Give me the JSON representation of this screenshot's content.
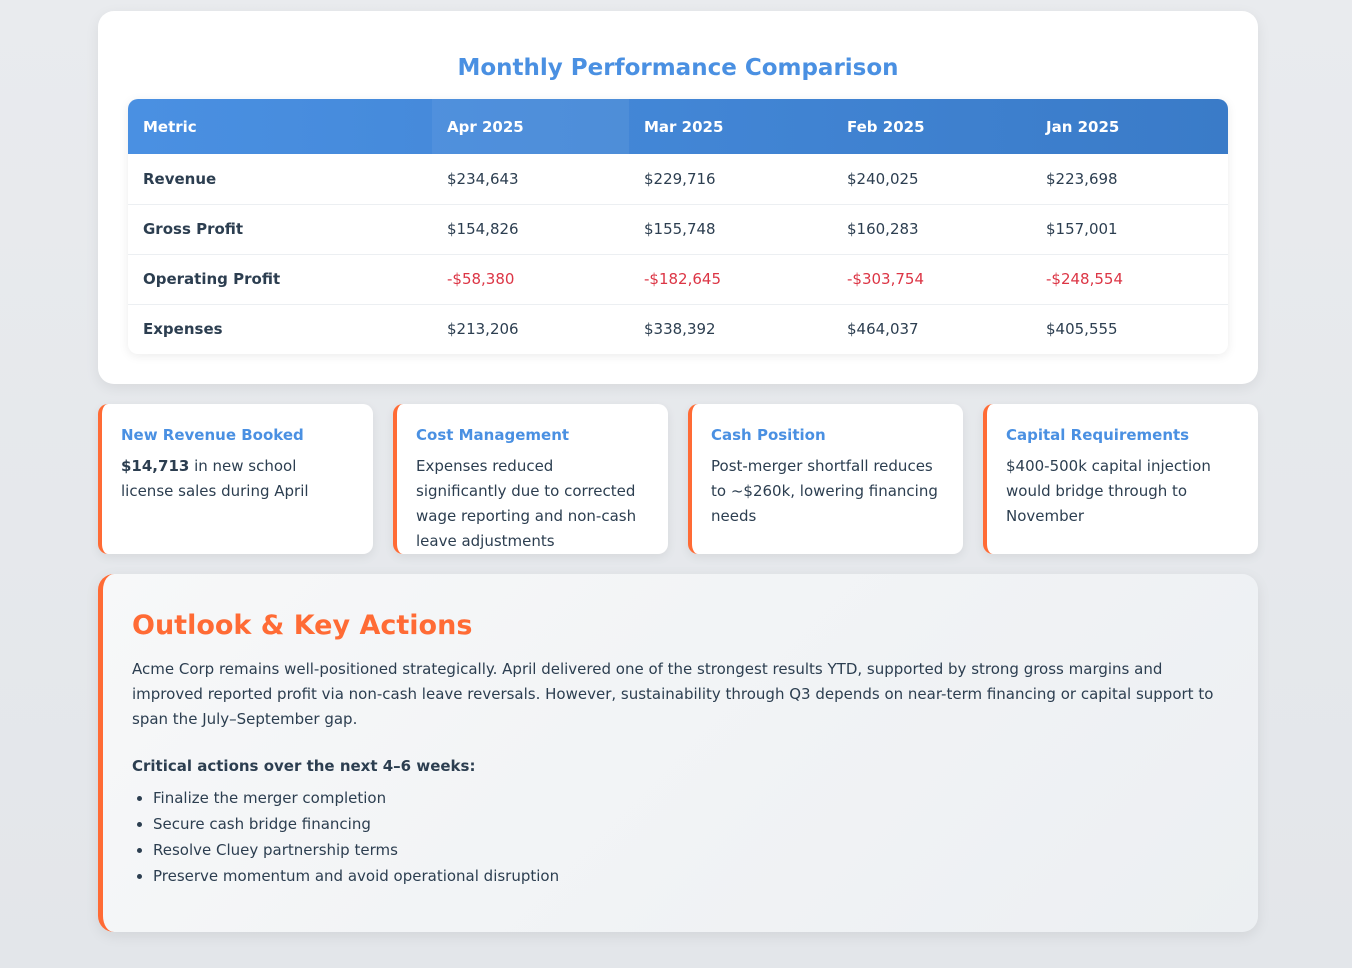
{
  "performance_table": {
    "title": "Monthly Performance Comparison",
    "headers": [
      "Metric",
      "Apr 2025",
      "Mar 2025",
      "Feb 2025",
      "Jan 2025"
    ],
    "rows": [
      {
        "metric": "Revenue",
        "values": [
          "$234,643",
          "$229,716",
          "$240,025",
          "$223,698"
        ]
      },
      {
        "metric": "Gross Profit",
        "values": [
          "$154,826",
          "$155,748",
          "$160,283",
          "$157,001"
        ]
      },
      {
        "metric": "Operating Profit",
        "values": [
          "-$58,380",
          "-$182,645",
          "-$303,754",
          "-$248,554"
        ]
      },
      {
        "metric": "Expenses",
        "values": [
          "$213,206",
          "$338,392",
          "$464,037",
          "$405,555"
        ]
      }
    ]
  },
  "insights": [
    {
      "title": "New Revenue Booked",
      "highlight": "$14,713",
      "text": " in new school license sales during April"
    },
    {
      "title": "Cost Management",
      "text": "Expenses reduced significantly due to corrected wage reporting and non-cash leave adjustments"
    },
    {
      "title": "Cash Position",
      "text": "Post-merger shortfall reduces to ~$260k, lowering financing needs"
    },
    {
      "title": "Capital Requirements",
      "text": "$400-500k capital injection would bridge through to November"
    }
  ],
  "outlook": {
    "title": "Outlook & Key Actions",
    "body": "Acme Corp remains well-positioned strategically. April delivered one of the strongest results YTD, supported by strong gross margins and improved reported profit via non-cash leave reversals. However, sustainability through Q3 depends on near-term financing or capital support to span the July–September gap.",
    "actions_heading": "Critical actions over the next 4–6 weeks:",
    "actions": [
      "Finalize the merger completion",
      "Secure cash bridge financing",
      "Resolve Cluey partnership terms",
      "Preserve momentum and avoid operational disruption"
    ]
  },
  "colors": {
    "accent_blue": "#4a90e2",
    "accent_orange": "#ff6b35",
    "negative_red": "#dc3545"
  }
}
